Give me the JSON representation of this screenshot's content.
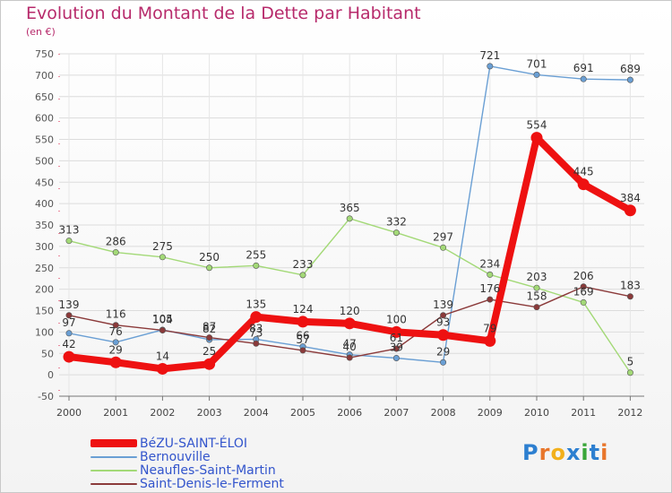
{
  "header": {
    "title": "Evolution du Montant de la Dette par Habitant",
    "unit": "(en €)"
  },
  "logo": {
    "text": "Proxiti",
    "letter_colors": [
      "#2d7fd0",
      "#e8762b",
      "#f2b01c",
      "#2d7fd0",
      "#3aa63a",
      "#2d7fd0",
      "#e8762b"
    ]
  },
  "chart_data": {
    "type": "line",
    "title": "Evolution du Montant de la Dette par Habitant",
    "ylabel": "(en €)",
    "xlabel": "",
    "x": [
      "2000",
      "2001",
      "2002",
      "2003",
      "2004",
      "2005",
      "2006",
      "2007",
      "2008",
      "2009",
      "2010",
      "2011",
      "2012"
    ],
    "ylim": [
      -50,
      750
    ],
    "yticks": [
      -50,
      0,
      50,
      100,
      150,
      200,
      250,
      300,
      350,
      400,
      450,
      500,
      550,
      600,
      650,
      700,
      750
    ],
    "grid": "horizontal",
    "legend_position": "bottom-left",
    "series": [
      {
        "name": "BéZU-SAINT-ÉLOI",
        "color": "#ee1111",
        "values": [
          42,
          29,
          14,
          25,
          135,
          124,
          120,
          100,
          93,
          79,
          554,
          445,
          384
        ],
        "labels": [
          "42",
          "29",
          "14",
          "25",
          "135",
          "124",
          "120",
          "100",
          "93",
          "79",
          "554",
          "445",
          "384"
        ]
      },
      {
        "name": "Bernouville",
        "color": "#6a9fd4",
        "values": [
          97,
          76,
          105,
          82,
          83,
          66,
          47,
          39,
          29,
          721,
          701,
          691,
          689
        ],
        "labels": [
          "97",
          "76",
          "105",
          "82",
          "83",
          "66",
          "47",
          "39",
          "29",
          "721",
          "701",
          "691",
          "689"
        ]
      },
      {
        "name": "Neaufles-Saint-Martin",
        "color": "#a3d977",
        "values": [
          313,
          286,
          275,
          250,
          255,
          233,
          365,
          332,
          297,
          234,
          203,
          169,
          5
        ],
        "labels": [
          "313",
          "286",
          "275",
          "250",
          "255",
          "233",
          "365",
          "332",
          "297",
          "234",
          "203",
          "169",
          "5"
        ]
      },
      {
        "name": "Saint-Denis-le-Ferment",
        "color": "#8b3a3a",
        "values": [
          139,
          116,
          104,
          87,
          73,
          57,
          40,
          61,
          139,
          176,
          158,
          206,
          183
        ],
        "labels": [
          "139",
          "116",
          "104",
          "87",
          "73",
          "57",
          "40",
          "61",
          "139",
          "176",
          "158",
          "206",
          "183"
        ]
      }
    ]
  }
}
